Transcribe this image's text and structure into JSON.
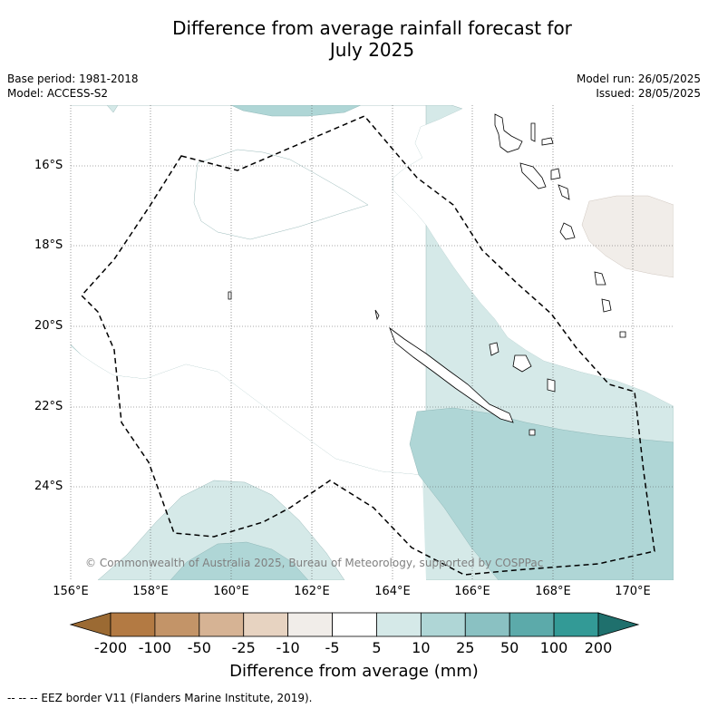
{
  "title_line1": "Difference from average rainfall forecast for",
  "title_line2": "July 2025",
  "base_period": "Base period: 1981-2018",
  "model": "Model: ACCESS-S2",
  "model_run": "Model run: 26/05/2025",
  "issued": "Issued: 28/05/2025",
  "lat_labels": [
    "16°S",
    "18°S",
    "20°S",
    "22°S",
    "24°S"
  ],
  "lon_labels": [
    "156°E",
    "158°E",
    "160°E",
    "162°E",
    "164°E",
    "166°E",
    "168°E",
    "170°E"
  ],
  "credit": "© Commonwealth of Australia 2025, Bureau of Meteorology, supported by COSPPac",
  "colorbar": {
    "ticks": [
      "-200",
      "-100",
      "-50",
      "-25",
      "-10",
      "-5",
      "5",
      "10",
      "25",
      "50",
      "100",
      "200"
    ],
    "colors": [
      "#9b6a33",
      "#b37a43",
      "#c39468",
      "#d6b394",
      "#e7d3c1",
      "#f1ede9",
      "#ffffff",
      "#d5e9e8",
      "#afd6d6",
      "#8ac1c2",
      "#5caaaa",
      "#339a96",
      "#1f706d"
    ],
    "label": "Difference from average (mm)"
  },
  "footnote": "--  --  -- EEZ border V11 (Flanders Marine Institute, 2019)."
}
